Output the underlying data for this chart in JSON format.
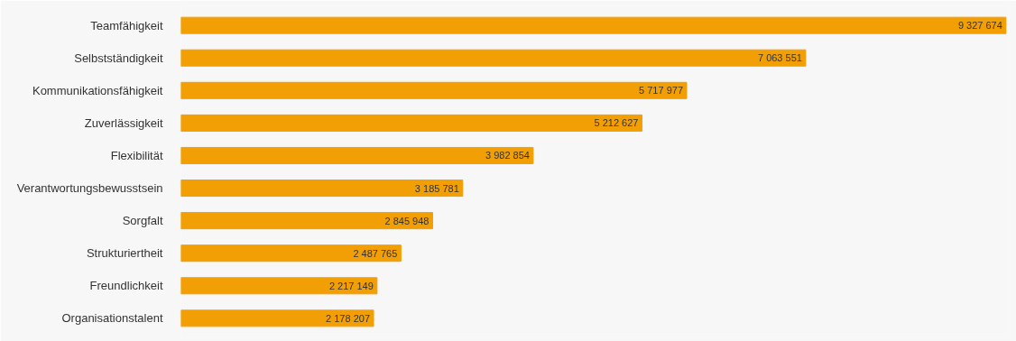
{
  "chart_data": {
    "type": "bar",
    "orientation": "horizontal",
    "data_labels": true,
    "grid": false,
    "categories": [
      "Teamfähigkeit",
      "Selbstständigkeit",
      "Kommunikationsfähigkeit",
      "Zuverlässigkeit",
      "Flexibilität",
      "Verantwortungsbewusstsein",
      "Sorgfalt",
      "Strukturiertheit",
      "Freundlichkeit",
      "Organisationstalent"
    ],
    "values": [
      9327674,
      7063551,
      5717977,
      5212627,
      3982854,
      3185781,
      2845948,
      2487765,
      2217149,
      2178207
    ],
    "color": "#f29f05"
  }
}
